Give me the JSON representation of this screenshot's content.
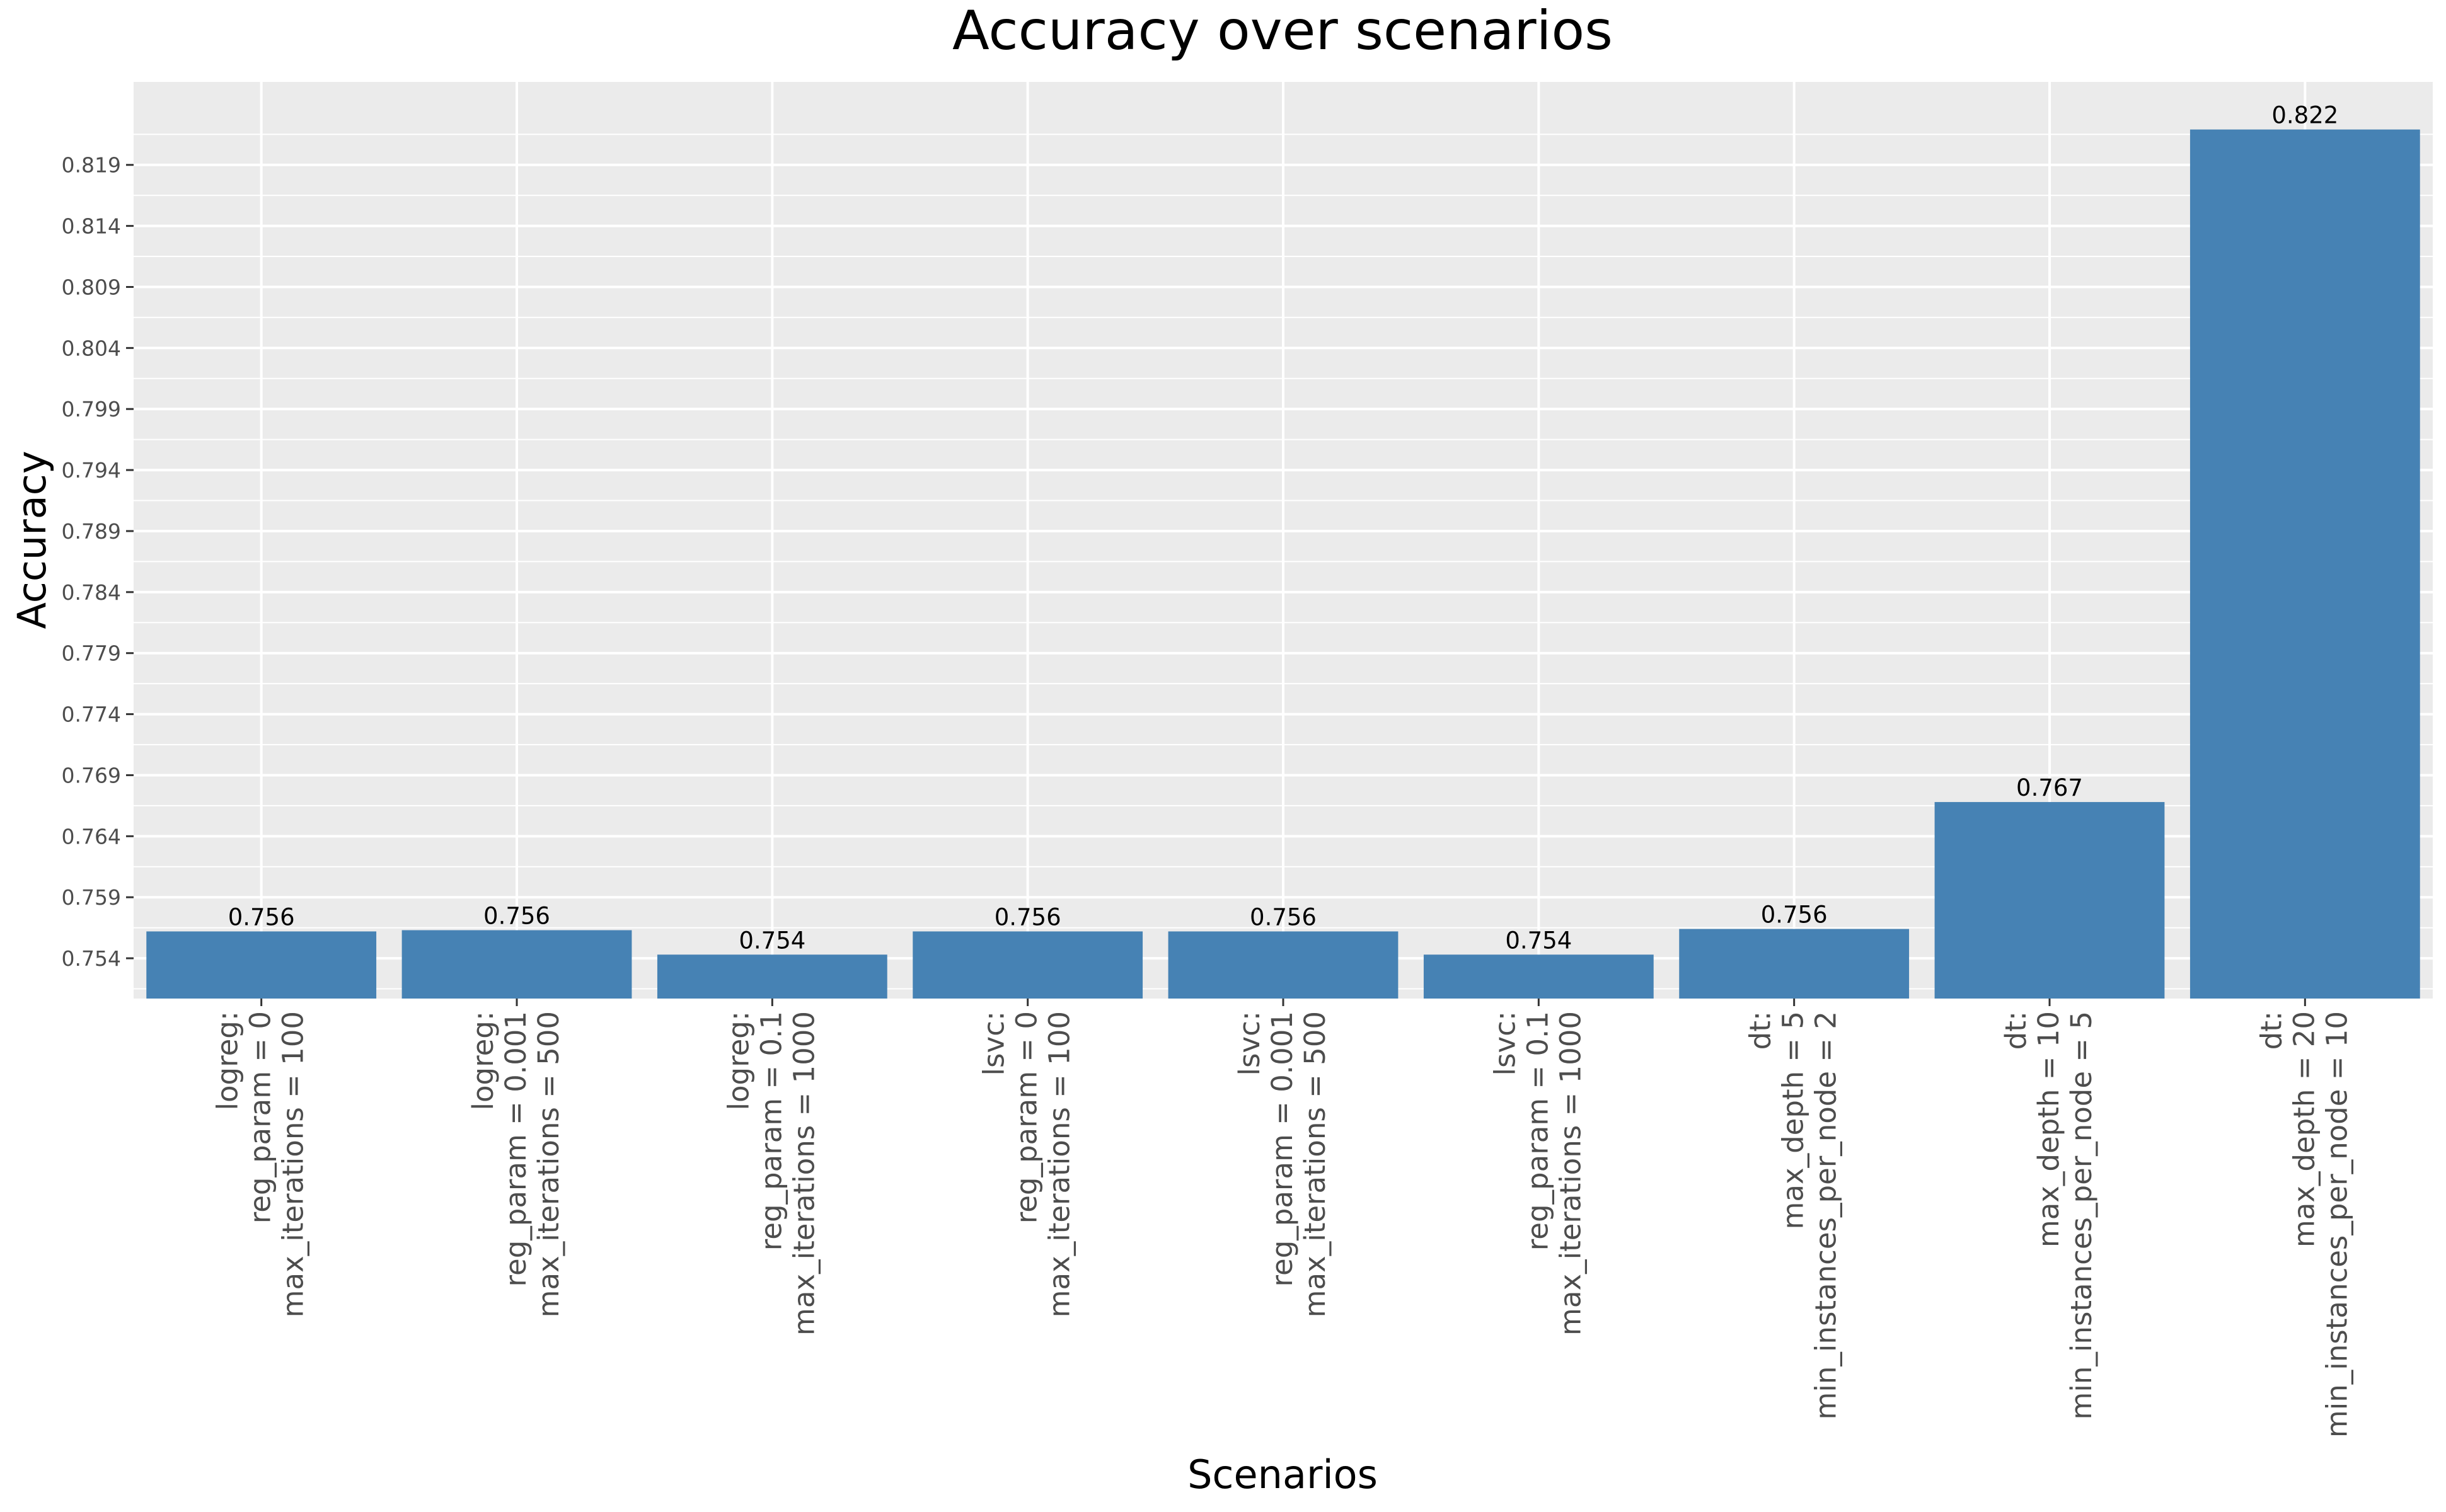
{
  "chart_data": {
    "type": "bar",
    "title": "Accuracy over scenarios",
    "xlabel": "Scenarios",
    "ylabel": "Accuracy",
    "categories": [
      [
        "logreg:",
        "reg_param = 0",
        "max_iterations = 100"
      ],
      [
        "logreg:",
        "reg_param = 0.001",
        "max_iterations = 500"
      ],
      [
        "logreg:",
        "reg_param = 0.1",
        "max_iterations = 1000"
      ],
      [
        "lsvc:",
        "reg_param = 0",
        "max_iterations = 100"
      ],
      [
        "lsvc:",
        "reg_param = 0.001",
        "max_iterations = 500"
      ],
      [
        "lsvc:",
        "reg_param = 0.1",
        "max_iterations = 1000"
      ],
      [
        "dt:",
        "max_depth = 5",
        "min_instances_per_node = 2"
      ],
      [
        "dt:",
        "max_depth = 10",
        "min_instances_per_node = 5"
      ],
      [
        "dt:",
        "max_depth = 20",
        "min_instances_per_node = 10"
      ]
    ],
    "values": [
      0.7562,
      0.7563,
      0.7543,
      0.7562,
      0.7562,
      0.7543,
      0.7564,
      0.7668,
      0.8219
    ],
    "data_labels": [
      "0.756",
      "0.756",
      "0.754",
      "0.756",
      "0.756",
      "0.754",
      "0.756",
      "0.767",
      "0.822"
    ],
    "yticks": [
      "0.754",
      "0.759",
      "0.764",
      "0.769",
      "0.774",
      "0.779",
      "0.784",
      "0.789",
      "0.794",
      "0.799",
      "0.804",
      "0.809",
      "0.814",
      "0.819"
    ],
    "ylim": [
      0.7507,
      0.8258
    ],
    "grid": true,
    "bar_color": "#4682B4",
    "panel_color": "#EBEBEB",
    "grid_color": "#FFFFFF"
  }
}
